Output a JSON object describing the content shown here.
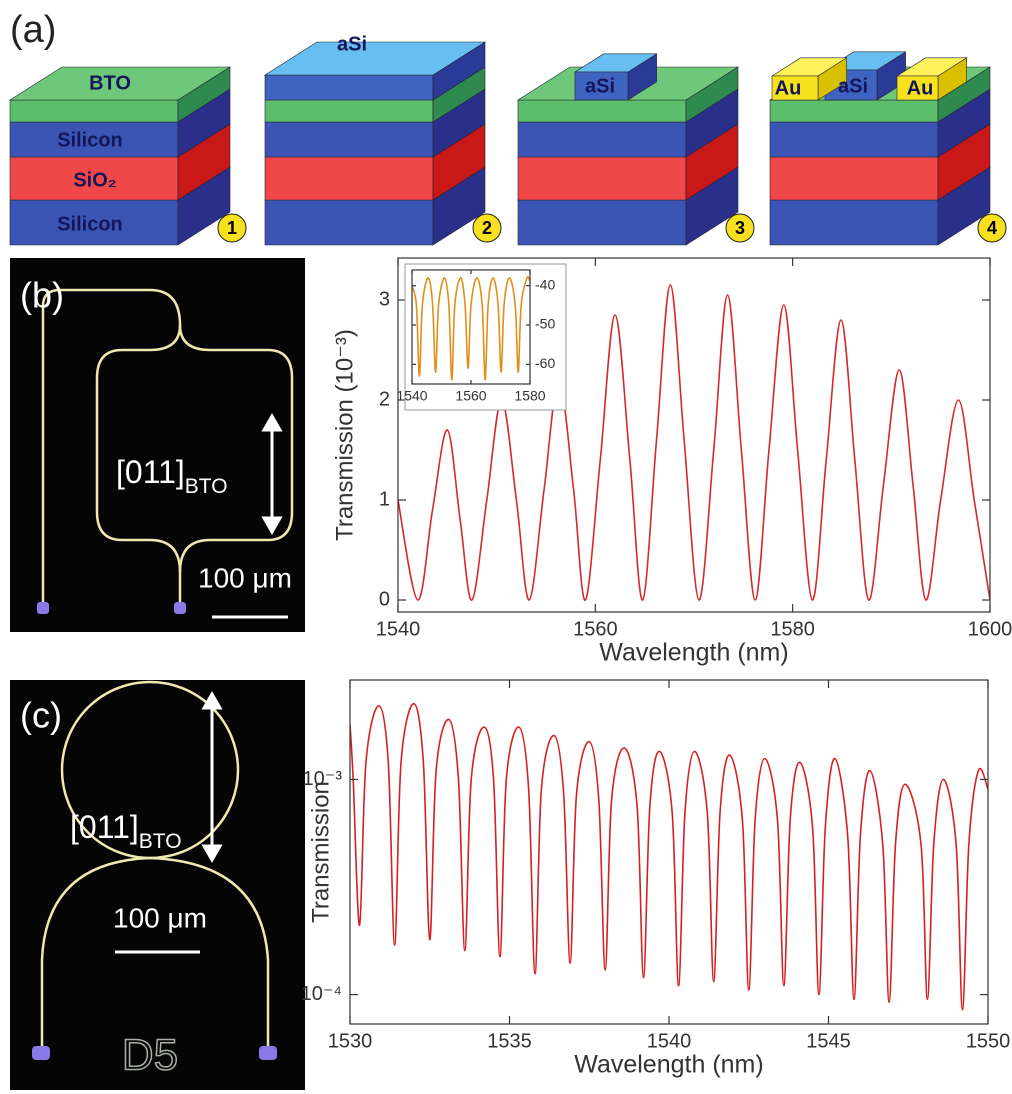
{
  "panel_a": {
    "label": "(a)",
    "step_numbers": [
      "1",
      "2",
      "3",
      "4"
    ],
    "layers": {
      "bto": "BTO",
      "silicon_top": "Silicon",
      "sio2": "SiO₂",
      "silicon_bottom": "Silicon"
    },
    "step2_top": "aSi",
    "step3_ridge": "aSi",
    "step4_ridges": [
      "Au",
      "aSi",
      "Au"
    ]
  },
  "panel_b": {
    "label": "(b)",
    "direction": "[011]",
    "direction_sub": "BTO",
    "scale_bar": "100 μm"
  },
  "panel_c": {
    "label": "(c)",
    "direction": "[011]",
    "direction_sub": "BTO",
    "scale_bar": "100 μm",
    "chip_label": "D5"
  },
  "chart_data": [
    {
      "type": "line",
      "x_label": "Wavelength (nm)",
      "y_label": "Transmission (10⁻³)",
      "color": "#d42a2a",
      "x": [
        1540,
        1542,
        1543.5,
        1545,
        1546.3,
        1547.5,
        1549,
        1550.5,
        1552,
        1553.3,
        1554.8,
        1556.3,
        1557.8,
        1559,
        1560.5,
        1562,
        1563.5,
        1564.8,
        1566.2,
        1567.6,
        1569,
        1570.5,
        1572,
        1573.4,
        1574.8,
        1576.2,
        1577.6,
        1579.1,
        1580.5,
        1582,
        1583.4,
        1584.9,
        1586.3,
        1587.7,
        1589.2,
        1590.8,
        1592.2,
        1593.5,
        1595,
        1596.8,
        1598.4,
        1600
      ],
      "values": [
        1.0,
        0,
        0.9,
        1.7,
        0.8,
        0,
        1.0,
        2.0,
        1.0,
        0,
        1.1,
        2.2,
        1.1,
        0,
        1.4,
        2.85,
        1.4,
        0,
        1.6,
        3.15,
        1.6,
        0,
        1.5,
        3.05,
        1.5,
        0,
        1.5,
        2.95,
        1.5,
        0,
        1.4,
        2.8,
        1.4,
        0,
        1.15,
        2.3,
        1.15,
        0,
        1.0,
        2.0,
        1.0,
        0
      ],
      "xlim": [
        1540,
        1600
      ],
      "ylim": [
        -0.12,
        3.42
      ],
      "xticks": [
        1540,
        1560,
        1580,
        1600
      ],
      "yticks": [
        0,
        1,
        2,
        3
      ]
    },
    {
      "type": "line",
      "color": "#e0901a",
      "y_axis_side": "right",
      "x": [
        1540,
        1541.5,
        1542.5,
        1543.5,
        1545.5,
        1547,
        1548,
        1549,
        1551,
        1552.5,
        1553.5,
        1554.5,
        1556.5,
        1558,
        1559,
        1560,
        1562,
        1563.8,
        1564.8,
        1565.8,
        1567.5,
        1569.2,
        1570.2,
        1571.2,
        1573,
        1575,
        1576,
        1577,
        1579,
        1580
      ],
      "values": [
        -40,
        -45,
        -63,
        -45,
        -38,
        -45,
        -62,
        -45,
        -38,
        -45,
        -64,
        -45,
        -38,
        -45,
        -61,
        -45,
        -38,
        -45,
        -64,
        -45,
        -38,
        -45,
        -62,
        -45,
        -38,
        -45,
        -62,
        -45,
        -38,
        -39
      ],
      "xlim": [
        1540,
        1580
      ],
      "ylim": [
        -65,
        -36
      ],
      "xticks": [
        1540,
        1560,
        1580
      ],
      "yticks": [
        -40,
        -50,
        -60
      ]
    },
    {
      "type": "line",
      "x_label": "Wavelength (nm)",
      "y_label": "Transmission",
      "color": "#d42020",
      "log_y": true,
      "x": [
        1530.0,
        1530.1,
        1530.3,
        1530.5,
        1530.9,
        1531.2,
        1531.4,
        1531.6,
        1532.0,
        1532.3,
        1532.5,
        1532.7,
        1533.1,
        1533.4,
        1533.6,
        1533.8,
        1534.2,
        1534.5,
        1534.7,
        1534.9,
        1535.3,
        1535.6,
        1535.8,
        1536.0,
        1536.4,
        1536.7,
        1536.9,
        1537.1,
        1537.5,
        1537.8,
        1538.0,
        1538.2,
        1538.6,
        1539.0,
        1539.2,
        1539.4,
        1539.7,
        1540.1,
        1540.3,
        1540.5,
        1540.8,
        1541.2,
        1541.4,
        1541.6,
        1541.9,
        1542.3,
        1542.5,
        1542.7,
        1543.0,
        1543.4,
        1543.6,
        1543.8,
        1544.1,
        1544.5,
        1544.7,
        1544.9,
        1545.2,
        1545.6,
        1545.8,
        1546.0,
        1546.3,
        1546.7,
        1546.9,
        1547.1,
        1547.4,
        1547.9,
        1548.1,
        1548.3,
        1548.6,
        1549.0,
        1549.2,
        1549.4,
        1549.7,
        1550.0
      ],
      "values": [
        0.0018,
        0.001,
        0.00021,
        0.0012,
        0.0022,
        0.0012,
        0.00017,
        0.0012,
        0.00225,
        0.0012,
        0.00018,
        0.0011,
        0.0019,
        0.001,
        0.00016,
        0.001,
        0.00175,
        0.001,
        0.00015,
        0.001,
        0.00175,
        0.0009,
        0.000125,
        0.0009,
        0.0016,
        0.00085,
        0.00014,
        0.00085,
        0.0015,
        0.0008,
        0.00013,
        0.0008,
        0.0014,
        0.00075,
        0.00012,
        0.00075,
        0.00135,
        0.0007,
        0.00011,
        0.0007,
        0.00135,
        0.0007,
        0.000115,
        0.0007,
        0.0013,
        0.00065,
        0.000105,
        0.00065,
        0.00125,
        0.00065,
        0.00011,
        0.00065,
        0.0012,
        0.0006,
        0.0001,
        0.0006,
        0.00125,
        0.00055,
        9.5e-05,
        0.00055,
        0.0011,
        0.0005,
        9.2e-05,
        0.0005,
        0.00095,
        0.0005,
        9.5e-05,
        0.0005,
        0.001,
        0.0005,
        8.5e-05,
        0.0005,
        0.0011,
        0.0009
      ],
      "xlim": [
        1530,
        1550
      ],
      "ylim": [
        7.3e-05,
        0.0029
      ],
      "xticks": [
        1530,
        1535,
        1540,
        1545,
        1550
      ],
      "yticks": [
        {
          "value": 0.001,
          "label": "10⁻³"
        },
        {
          "value": 0.0001,
          "label": "10⁻⁴"
        }
      ]
    }
  ]
}
